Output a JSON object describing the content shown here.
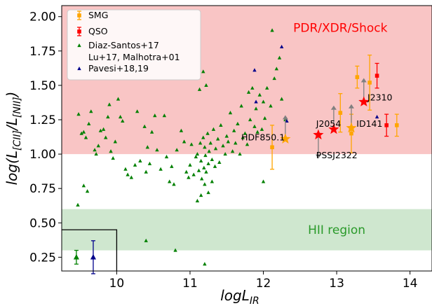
{
  "chart_data": {
    "type": "scatter",
    "xlabel": "logL_IR",
    "ylabel": "log(L_[CII]/L_[NII])",
    "xlim": [
      9.25,
      14.3
    ],
    "ylim": [
      0.15,
      2.08
    ],
    "xticks": [
      10,
      11,
      12,
      13,
      14
    ],
    "yticks": [
      0.25,
      0.5,
      0.75,
      1.0,
      1.25,
      1.5,
      1.75,
      2.0
    ],
    "xtick_labels": [
      "10",
      "11",
      "12",
      "13",
      "14"
    ],
    "ytick_labels": [
      "0.25",
      "0.50",
      "0.75",
      "1.00",
      "1.25",
      "1.50",
      "1.75",
      "2.00"
    ],
    "grid": false,
    "legend_position": "top-left",
    "colors": {
      "smg": "#ffa500",
      "qso": "#ff0000",
      "diaz": "#008000",
      "pavesi": "#00008b",
      "star": "#ff0000",
      "upper_lim": "#808080",
      "pdr_band": "#f9c5c5",
      "hii_band": "#cfe7cf"
    },
    "regions": [
      {
        "name": "PDR/XDR/Shock",
        "ymin": 1.0,
        "ymax": 2.08,
        "color": "#f9c5c5"
      },
      {
        "name": "HII region",
        "ymin": 0.3,
        "ymax": 0.6,
        "color": "#cfe7cf"
      }
    ],
    "region_labels": [
      {
        "text": "PDR/XDR/Shock",
        "x": 13.05,
        "y": 1.92,
        "color": "#ff0000"
      },
      {
        "text": "HII region",
        "x": 13.0,
        "y": 0.45,
        "color": "#2a9a2a"
      }
    ],
    "inset_box": {
      "xmin": 9.25,
      "xmax": 10.0,
      "ymin": 0.15,
      "ymax": 0.45
    },
    "legend": [
      {
        "label": "SMG",
        "marker": "square-errorbar",
        "color": "#ffa500"
      },
      {
        "label": "QSO",
        "marker": "square-errorbar",
        "color": "#ff0000"
      },
      {
        "label": "Diaz-Santos+17",
        "label2": "Lu+17, Malhotra+01",
        "marker": "triangle",
        "color": "#008000"
      },
      {
        "label": "Pavesi+18,19",
        "marker": "triangle",
        "color": "#00008b"
      }
    ],
    "series": [
      {
        "name": "SMG",
        "marker": "square",
        "color": "#ffa500",
        "points": [
          {
            "x": 12.12,
            "y": 1.05,
            "yerr": 0.16
          },
          {
            "x": 13.05,
            "y": 1.3,
            "yerr": 0.14
          },
          {
            "x": 13.28,
            "y": 1.56,
            "yerr": 0.08
          },
          {
            "x": 13.45,
            "y": 1.52,
            "yerr": 0.2
          },
          {
            "x": 13.2,
            "y": 1.15,
            "yerr": 0.14
          },
          {
            "x": 13.82,
            "y": 1.21,
            "yerr": 0.08
          }
        ]
      },
      {
        "name": "QSO",
        "marker": "square",
        "color": "#ff0000",
        "points": [
          {
            "x": 13.55,
            "y": 1.57,
            "yerr": 0.09
          },
          {
            "x": 13.68,
            "y": 1.21,
            "yerr": 0.08
          }
        ]
      },
      {
        "name": "Diaz-Santos+17 / Lu+17, Malhotra+01",
        "marker": "triangle",
        "color": "#008000",
        "points": [
          [
            9.48,
            1.29
          ],
          [
            9.52,
            1.15
          ],
          [
            9.55,
            1.16
          ],
          [
            9.58,
            1.12
          ],
          [
            9.62,
            1.22
          ],
          [
            9.65,
            1.31
          ],
          [
            9.7,
            1.03
          ],
          [
            9.72,
            1.0
          ],
          [
            9.75,
            1.06
          ],
          [
            9.78,
            1.17
          ],
          [
            9.82,
            1.18
          ],
          [
            9.85,
            1.12
          ],
          [
            9.88,
            1.27
          ],
          [
            9.9,
            1.36
          ],
          [
            9.92,
            1.02
          ],
          [
            9.95,
            0.97
          ],
          [
            9.98,
            1.09
          ],
          [
            10.02,
            1.4
          ],
          [
            10.05,
            1.27
          ],
          [
            10.08,
            1.24
          ],
          [
            10.12,
            0.89
          ],
          [
            10.15,
            0.85
          ],
          [
            10.2,
            0.83
          ],
          [
            10.25,
            0.92
          ],
          [
            10.28,
            1.31
          ],
          [
            10.32,
            0.95
          ],
          [
            10.38,
            1.2
          ],
          [
            10.4,
            0.87
          ],
          [
            10.42,
            1.05
          ],
          [
            10.45,
            0.93
          ],
          [
            10.48,
            1.16
          ],
          [
            10.52,
            1.28
          ],
          [
            10.55,
            1.03
          ],
          [
            10.6,
            0.89
          ],
          [
            10.65,
            1.28
          ],
          [
            10.68,
            0.98
          ],
          [
            10.72,
            0.8
          ],
          [
            10.75,
            0.91
          ],
          [
            10.78,
            0.78
          ],
          [
            10.82,
            1.03
          ],
          [
            10.88,
            1.17
          ],
          [
            10.92,
            1.09
          ],
          [
            10.95,
            0.87
          ],
          [
            10.98,
            0.83
          ],
          [
            11.0,
            0.92
          ],
          [
            11.02,
            1.07
          ],
          [
            11.05,
            0.85
          ],
          [
            11.08,
            0.98
          ],
          [
            11.1,
            1.0
          ],
          [
            11.12,
            0.88
          ],
          [
            11.14,
            1.08
          ],
          [
            11.15,
            0.95
          ],
          [
            11.16,
            0.82
          ],
          [
            11.18,
            1.12
          ],
          [
            11.19,
            0.9
          ],
          [
            11.2,
            1.05
          ],
          [
            11.21,
            0.99
          ],
          [
            11.22,
            0.87
          ],
          [
            11.24,
            1.15
          ],
          [
            11.25,
            0.93
          ],
          [
            11.26,
            1.02
          ],
          [
            11.28,
            1.08
          ],
          [
            11.3,
            0.96
          ],
          [
            11.32,
            1.18
          ],
          [
            11.34,
            0.91
          ],
          [
            11.35,
            1.04
          ],
          [
            11.38,
            1.11
          ],
          [
            11.4,
            0.94
          ],
          [
            11.42,
            1.21
          ],
          [
            11.45,
            1.06
          ],
          [
            11.48,
            1.0
          ],
          [
            11.5,
            1.13
          ],
          [
            11.52,
            1.09
          ],
          [
            11.55,
            1.3
          ],
          [
            11.58,
            1.02
          ],
          [
            11.6,
            1.17
          ],
          [
            11.62,
            1.08
          ],
          [
            11.65,
            1.22
          ],
          [
            11.68,
            1.0
          ],
          [
            11.7,
            1.35
          ],
          [
            11.72,
            1.12
          ],
          [
            11.75,
            1.15
          ],
          [
            11.78,
            1.07
          ],
          [
            11.8,
            1.45
          ],
          [
            11.82,
            1.25
          ],
          [
            11.85,
            1.48
          ],
          [
            11.88,
            1.2
          ],
          [
            11.9,
            1.33
          ],
          [
            11.92,
            1.16
          ],
          [
            11.95,
            1.43
          ],
          [
            11.98,
            1.18
          ],
          [
            12.0,
            1.38
          ],
          [
            12.02,
            1.26
          ],
          [
            12.05,
            1.48
          ],
          [
            12.1,
            1.35
          ],
          [
            12.12,
            1.9
          ],
          [
            12.15,
            1.55
          ],
          [
            12.18,
            1.62
          ],
          [
            12.22,
            1.7
          ],
          [
            12.25,
            1.4
          ],
          [
            12.3,
            1.25
          ],
          [
            12.0,
            0.8
          ],
          [
            11.13,
            1.47
          ],
          [
            11.18,
            1.6
          ],
          [
            11.22,
            1.5
          ],
          [
            11.15,
            0.7
          ],
          [
            11.2,
            0.78
          ],
          [
            11.25,
            0.72
          ],
          [
            11.1,
            0.66
          ],
          [
            11.3,
            0.8
          ],
          [
            10.4,
            0.37
          ],
          [
            10.8,
            0.3
          ],
          [
            11.2,
            0.2
          ],
          [
            9.47,
            0.63
          ],
          [
            9.6,
            0.73
          ],
          [
            9.55,
            0.77
          ]
        ]
      },
      {
        "name": "Pavesi+18,19",
        "marker": "triangle",
        "color": "#00008b",
        "points": [
          [
            11.88,
            1.61
          ],
          [
            11.9,
            1.38
          ],
          [
            12.25,
            1.78
          ],
          [
            12.32,
            1.24
          ],
          [
            13.55,
            1.27
          ]
        ]
      },
      {
        "name": "Starred sources",
        "marker": "star",
        "color": "#ff0000",
        "points": [
          {
            "x": 12.75,
            "y": 1.14,
            "label": "PSSJ2322",
            "lim": "lower"
          },
          {
            "x": 12.96,
            "y": 1.18,
            "label": "J2054",
            "lim": "upper"
          },
          {
            "x": 13.37,
            "y": 1.38,
            "label": "J2310",
            "lim": "upper"
          }
        ]
      },
      {
        "name": "Orange stars",
        "marker": "star",
        "color": "#ffa500",
        "points": [
          {
            "x": 12.3,
            "y": 1.11,
            "label": "HDF850.1",
            "lim": "upper"
          },
          {
            "x": 13.2,
            "y": 1.19,
            "label": "ID141",
            "lim": "upper"
          }
        ]
      },
      {
        "name": "Inset points",
        "marker": "triangle-errorbar",
        "points": [
          {
            "x": 9.45,
            "y": 0.25,
            "yerr": 0.05,
            "color": "#008000"
          },
          {
            "x": 9.68,
            "y": 0.25,
            "yerr": 0.12,
            "color": "#00008b"
          }
        ]
      }
    ],
    "annotations": [
      {
        "text": "HDF850.1",
        "x": 11.7,
        "y": 1.12
      },
      {
        "text": "J2054",
        "x": 12.72,
        "y": 1.22
      },
      {
        "text": "PSSJ2322",
        "x": 12.72,
        "y": 0.99
      },
      {
        "text": "ID141",
        "x": 13.27,
        "y": 1.22
      },
      {
        "text": "J2310",
        "x": 13.42,
        "y": 1.41
      }
    ]
  }
}
